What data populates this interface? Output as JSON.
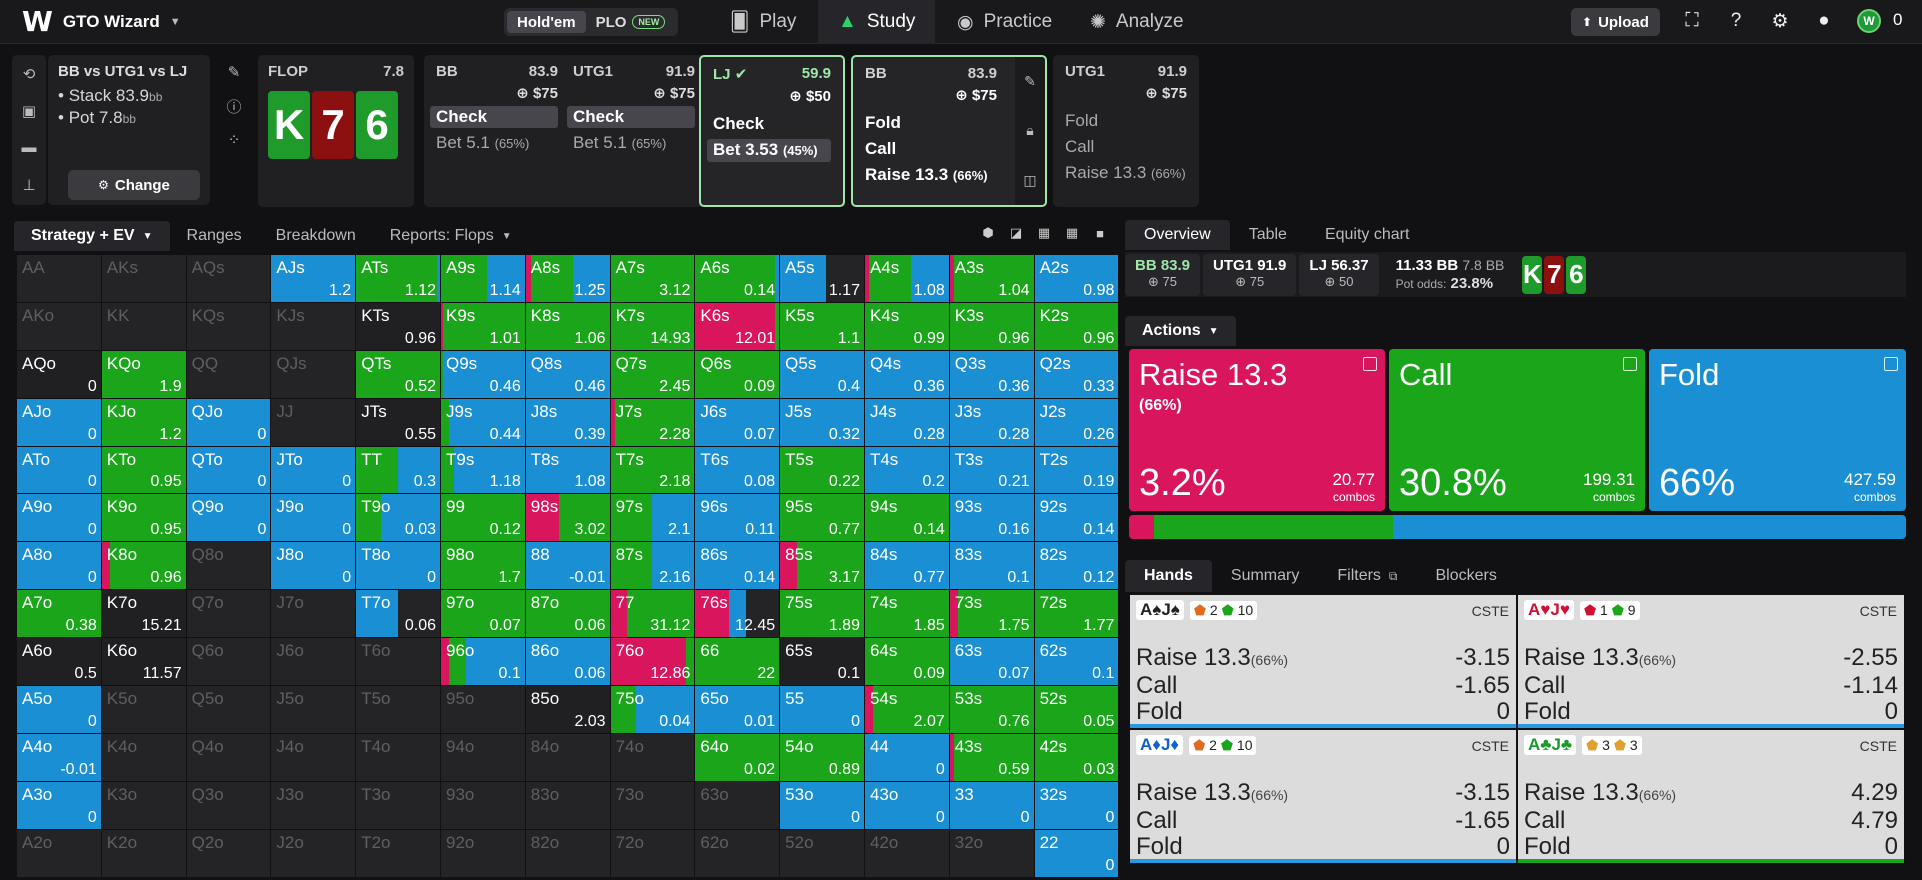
{
  "app": {
    "title": "GTO Wizard",
    "mode_holdem": "Hold'em",
    "mode_plo": "PLO",
    "new_badge": "NEW",
    "upload": "Upload",
    "coins": "0"
  },
  "nav": {
    "play": "Play",
    "study": "Study",
    "practice": "Practice",
    "analyze": "Analyze"
  },
  "game": {
    "title": "BB vs UTG1 vs LJ",
    "stack_label": "Stack 83.9",
    "stack_unit": "bb",
    "pot_label": "Pot 7.8",
    "pot_unit": "bb",
    "change": "Change"
  },
  "flop": {
    "label": "FLOP",
    "pot": "7.8",
    "cards": [
      "K",
      "7",
      "6"
    ]
  },
  "nodes": [
    {
      "pos": "BB",
      "stack": "83.9",
      "bet": "$75",
      "actions": [
        {
          "label": "Check",
          "pct": ""
        },
        {
          "label": "Bet 5.1",
          "pct": "(65%)"
        }
      ]
    },
    {
      "pos": "UTG1",
      "stack": "91.9",
      "bet": "$75",
      "actions": [
        {
          "label": "Check",
          "pct": ""
        },
        {
          "label": "Bet 5.1",
          "pct": "(65%)"
        }
      ]
    },
    {
      "pos": "LJ",
      "stack": "59.9",
      "bet": "$50",
      "actions": [
        {
          "label": "Check",
          "pct": ""
        },
        {
          "label": "Bet 3.53",
          "pct": "(45%)"
        }
      ]
    },
    {
      "pos": "BB",
      "stack": "83.9",
      "bet": "$75",
      "actions": [
        {
          "label": "Fold",
          "pct": ""
        },
        {
          "label": "Call",
          "pct": ""
        },
        {
          "label": "Raise 13.3",
          "pct": "(66%)"
        }
      ]
    },
    {
      "pos": "UTG1",
      "stack": "91.9",
      "bet": "$75",
      "actions": [
        {
          "label": "Fold",
          "pct": ""
        },
        {
          "label": "Call",
          "pct": ""
        },
        {
          "label": "Raise 13.3",
          "pct": "(66%)"
        }
      ]
    }
  ],
  "grid_tabs": {
    "strategy": "Strategy + EV",
    "ranges": "Ranges",
    "breakdown": "Breakdown",
    "reports": "Reports: Flops"
  },
  "colors": {
    "raise": "#d8155d",
    "call": "#1aa51a",
    "fold": "#1b8fd3",
    "empty": "#242427"
  },
  "grid": [
    [
      [
        "AA",
        "",
        0,
        0,
        0
      ],
      [
        "AKs",
        "",
        0,
        0,
        0
      ],
      [
        "AQs",
        "",
        0,
        0,
        0
      ],
      [
        "AJs",
        "1.2",
        0,
        0,
        1
      ],
      [
        "ATs",
        "1.12",
        0,
        0.97,
        0.03
      ],
      [
        "A9s",
        "1.14",
        0,
        0.55,
        0.45
      ],
      [
        "A8s",
        "1.25",
        0.06,
        0.5,
        0.44
      ],
      [
        "A7s",
        "3.12",
        0,
        1,
        0
      ],
      [
        "A6s",
        "0.14",
        0,
        0.95,
        0.05
      ],
      [
        "A5s",
        "1.17",
        0,
        0,
        0.55
      ],
      [
        "A4s",
        "1.08",
        0.05,
        0.5,
        0.45
      ],
      [
        "A3s",
        "1.04",
        0.05,
        0.95,
        0
      ],
      [
        "A2s",
        "0.98",
        0,
        0,
        1
      ]
    ],
    [
      [
        "AKo",
        "",
        0,
        0,
        0
      ],
      [
        "KK",
        "",
        0,
        0,
        0
      ],
      [
        "KQs",
        "",
        0,
        0,
        0
      ],
      [
        "KJs",
        "",
        0,
        0,
        0
      ],
      [
        "KTs",
        "0.96",
        0,
        0,
        0
      ],
      [
        "K9s",
        "1.01",
        0.03,
        0.97,
        0
      ],
      [
        "K8s",
        "1.06",
        0,
        1,
        0
      ],
      [
        "K7s",
        "14.93",
        0,
        1,
        0
      ],
      [
        "K6s",
        "12.01",
        0.95,
        0.05,
        0
      ],
      [
        "K5s",
        "1.1",
        0,
        1,
        0
      ],
      [
        "K4s",
        "0.99",
        0,
        1,
        0
      ],
      [
        "K3s",
        "0.96",
        0,
        1,
        0
      ],
      [
        "K2s",
        "0.96",
        0,
        1,
        0
      ]
    ],
    [
      [
        "AQo",
        "0",
        0,
        0,
        0
      ],
      [
        "KQo",
        "1.9",
        0,
        1,
        0
      ],
      [
        "QQ",
        "",
        0,
        0,
        0
      ],
      [
        "QJs",
        "",
        0,
        0,
        0
      ],
      [
        "QTs",
        "0.52",
        0,
        1,
        0
      ],
      [
        "Q9s",
        "0.46",
        0,
        0.03,
        0.97
      ],
      [
        "Q8s",
        "0.46",
        0,
        0,
        1
      ],
      [
        "Q7s",
        "2.45",
        0,
        1,
        0
      ],
      [
        "Q6s",
        "0.09",
        0,
        1,
        0
      ],
      [
        "Q5s",
        "0.4",
        0,
        0,
        1
      ],
      [
        "Q4s",
        "0.36",
        0,
        0,
        1
      ],
      [
        "Q3s",
        "0.36",
        0,
        0,
        1
      ],
      [
        "Q2s",
        "0.33",
        0,
        0,
        1
      ]
    ],
    [
      [
        "AJo",
        "0",
        0,
        0,
        1
      ],
      [
        "KJo",
        "1.2",
        0,
        1,
        0
      ],
      [
        "QJo",
        "0",
        0,
        0,
        1
      ],
      [
        "JJ",
        "",
        0,
        0,
        0
      ],
      [
        "JTs",
        "0.55",
        0,
        0,
        0
      ],
      [
        "J9s",
        "0.44",
        0,
        0.1,
        0.9
      ],
      [
        "J8s",
        "0.39",
        0,
        0,
        1
      ],
      [
        "J7s",
        "2.28",
        0.05,
        0.95,
        0
      ],
      [
        "J6s",
        "0.07",
        0,
        0,
        1
      ],
      [
        "J5s",
        "0.32",
        0,
        0,
        1
      ],
      [
        "J4s",
        "0.28",
        0,
        0,
        1
      ],
      [
        "J3s",
        "0.28",
        0,
        0,
        1
      ],
      [
        "J2s",
        "0.26",
        0,
        0,
        1
      ]
    ],
    [
      [
        "ATo",
        "0",
        0,
        0,
        1
      ],
      [
        "KTo",
        "0.95",
        0,
        1,
        0
      ],
      [
        "QTo",
        "0",
        0,
        0,
        1
      ],
      [
        "JTo",
        "0",
        0,
        0,
        1
      ],
      [
        "TT",
        "0.3",
        0,
        0.5,
        0.5
      ],
      [
        "T9s",
        "1.18",
        0,
        0.15,
        0.85
      ],
      [
        "T8s",
        "1.08",
        0,
        0,
        1
      ],
      [
        "T7s",
        "2.18",
        0,
        1,
        0
      ],
      [
        "T6s",
        "0.08",
        0,
        0,
        1
      ],
      [
        "T5s",
        "0.22",
        0,
        1,
        0
      ],
      [
        "T4s",
        "0.2",
        0,
        0,
        1
      ],
      [
        "T3s",
        "0.21",
        0,
        0,
        1
      ],
      [
        "T2s",
        "0.19",
        0,
        0,
        1
      ]
    ],
    [
      [
        "A9o",
        "0",
        0,
        0,
        1
      ],
      [
        "K9o",
        "0.95",
        0,
        1,
        0
      ],
      [
        "Q9o",
        "0",
        0,
        0,
        1
      ],
      [
        "J9o",
        "0",
        0,
        0,
        1
      ],
      [
        "T9o",
        "0.03",
        0,
        0.3,
        0.7
      ],
      [
        "99",
        "0.12",
        0,
        1,
        0
      ],
      [
        "98s",
        "3.02",
        0.4,
        0.6,
        0
      ],
      [
        "97s",
        "2.1",
        0,
        0.5,
        0.5
      ],
      [
        "96s",
        "0.11",
        0,
        0,
        1
      ],
      [
        "95s",
        "0.77",
        0,
        1,
        0
      ],
      [
        "94s",
        "0.14",
        0,
        1,
        0
      ],
      [
        "93s",
        "0.16",
        0,
        0,
        1
      ],
      [
        "92s",
        "0.14",
        0,
        0,
        1
      ]
    ],
    [
      [
        "A8o",
        "0",
        0,
        0,
        1
      ],
      [
        "K8o",
        "0.96",
        0.1,
        0.9,
        0
      ],
      [
        "Q8o",
        "",
        0,
        0,
        0
      ],
      [
        "J8o",
        "0",
        0,
        0,
        1
      ],
      [
        "T8o",
        "0",
        0,
        0,
        1
      ],
      [
        "98o",
        "1.7",
        0,
        1,
        0
      ],
      [
        "88",
        "-0.01",
        0,
        0,
        1
      ],
      [
        "87s",
        "2.16",
        0,
        0.5,
        0.5
      ],
      [
        "86s",
        "0.14",
        0,
        0,
        1
      ],
      [
        "85s",
        "3.17",
        0.2,
        0.8,
        0
      ],
      [
        "84s",
        "0.77",
        0,
        0,
        1
      ],
      [
        "83s",
        "0.1",
        0,
        0,
        1
      ],
      [
        "82s",
        "0.12",
        0,
        0,
        1
      ]
    ],
    [
      [
        "A7o",
        "0.38",
        0,
        1,
        0
      ],
      [
        "K7o",
        "15.21",
        0,
        0,
        0
      ],
      [
        "Q7o",
        "",
        0,
        0,
        0
      ],
      [
        "J7o",
        "",
        0,
        0,
        0
      ],
      [
        "T7o",
        "0.06",
        0,
        0,
        0.5
      ],
      [
        "97o",
        "0.07",
        0,
        1,
        0
      ],
      [
        "87o",
        "0.06",
        0,
        1,
        0
      ],
      [
        "77",
        "31.12",
        0.2,
        0.8,
        0
      ],
      [
        "76s",
        "12.45",
        0.4,
        0,
        0.2
      ],
      [
        "75s",
        "1.89",
        0,
        1,
        0
      ],
      [
        "74s",
        "1.85",
        0,
        1,
        0
      ],
      [
        "73s",
        "1.75",
        0.1,
        0.9,
        0
      ],
      [
        "72s",
        "1.77",
        0,
        1,
        0
      ]
    ],
    [
      [
        "A6o",
        "0.5",
        0,
        0,
        0
      ],
      [
        "K6o",
        "11.57",
        0,
        0,
        0
      ],
      [
        "Q6o",
        "",
        0,
        0,
        0
      ],
      [
        "J6o",
        "",
        0,
        0,
        0
      ],
      [
        "T6o",
        "",
        0,
        0,
        0
      ],
      [
        "96o",
        "0.1",
        0.1,
        0.2,
        0.7
      ],
      [
        "86o",
        "0.06",
        0,
        0,
        1
      ],
      [
        "76o",
        "12.86",
        0.9,
        0.1,
        0
      ],
      [
        "66",
        "22",
        0,
        1,
        0
      ],
      [
        "65s",
        "0.1",
        0,
        0,
        0
      ],
      [
        "64s",
        "0.09",
        0,
        1,
        0
      ],
      [
        "63s",
        "0.07",
        0,
        0,
        1
      ],
      [
        "62s",
        "0.1",
        0,
        0,
        1
      ]
    ],
    [
      [
        "A5o",
        "0",
        0,
        0,
        1
      ],
      [
        "K5o",
        "",
        0,
        0,
        0
      ],
      [
        "Q5o",
        "",
        0,
        0,
        0
      ],
      [
        "J5o",
        "",
        0,
        0,
        0
      ],
      [
        "T5o",
        "",
        0,
        0,
        0
      ],
      [
        "95o",
        "",
        0,
        0,
        0
      ],
      [
        "85o",
        "2.03",
        0,
        0,
        0
      ],
      [
        "75o",
        "0.04",
        0,
        0.3,
        0.7
      ],
      [
        "65o",
        "0.01",
        0,
        0,
        1
      ],
      [
        "55",
        "0",
        0,
        0,
        1
      ],
      [
        "54s",
        "2.07",
        0.1,
        0.9,
        0
      ],
      [
        "53s",
        "0.76",
        0,
        1,
        0
      ],
      [
        "52s",
        "0.05",
        0,
        1,
        0
      ]
    ],
    [
      [
        "A4o",
        "-0.01",
        0,
        0,
        1
      ],
      [
        "K4o",
        "",
        0,
        0,
        0
      ],
      [
        "Q4o",
        "",
        0,
        0,
        0
      ],
      [
        "J4o",
        "",
        0,
        0,
        0
      ],
      [
        "T4o",
        "",
        0,
        0,
        0
      ],
      [
        "94o",
        "",
        0,
        0,
        0
      ],
      [
        "84o",
        "",
        0,
        0,
        0
      ],
      [
        "74o",
        "",
        0,
        0,
        0
      ],
      [
        "64o",
        "0.02",
        0,
        1,
        0
      ],
      [
        "54o",
        "0.89",
        0,
        1,
        0
      ],
      [
        "44",
        "0",
        0,
        0,
        1
      ],
      [
        "43s",
        "0.59",
        0.05,
        0.95,
        0
      ],
      [
        "42s",
        "0.03",
        0,
        1,
        0
      ]
    ],
    [
      [
        "A3o",
        "0",
        0,
        0,
        1
      ],
      [
        "K3o",
        "",
        0,
        0,
        0
      ],
      [
        "Q3o",
        "",
        0,
        0,
        0
      ],
      [
        "J3o",
        "",
        0,
        0,
        0
      ],
      [
        "T3o",
        "",
        0,
        0,
        0
      ],
      [
        "93o",
        "",
        0,
        0,
        0
      ],
      [
        "83o",
        "",
        0,
        0,
        0
      ],
      [
        "73o",
        "",
        0,
        0,
        0
      ],
      [
        "63o",
        "",
        0,
        0,
        0
      ],
      [
        "53o",
        "0",
        0,
        0,
        1
      ],
      [
        "43o",
        "0",
        0,
        0,
        1
      ],
      [
        "33",
        "0",
        0,
        0,
        1
      ],
      [
        "32s",
        "0",
        0,
        0,
        1
      ]
    ],
    [
      [
        "A2o",
        "",
        0,
        0,
        0
      ],
      [
        "K2o",
        "",
        0,
        0,
        0
      ],
      [
        "Q2o",
        "",
        0,
        0,
        0
      ],
      [
        "J2o",
        "",
        0,
        0,
        0
      ],
      [
        "T2o",
        "",
        0,
        0,
        0
      ],
      [
        "92o",
        "",
        0,
        0,
        0
      ],
      [
        "82o",
        "",
        0,
        0,
        0
      ],
      [
        "72o",
        "",
        0,
        0,
        0
      ],
      [
        "62o",
        "",
        0,
        0,
        0
      ],
      [
        "52o",
        "",
        0,
        0,
        0
      ],
      [
        "42o",
        "",
        0,
        0,
        0
      ],
      [
        "32o",
        "",
        0,
        0,
        0
      ],
      [
        "22",
        "0",
        0,
        0,
        1
      ]
    ]
  ],
  "overview": {
    "tabs": {
      "overview": "Overview",
      "table": "Table",
      "equity": "Equity chart"
    },
    "players": [
      {
        "name": "BB 83.9",
        "sub": "75"
      },
      {
        "name": "UTG1 91.9",
        "sub": "75"
      },
      {
        "name": "LJ 56.37",
        "sub": "50"
      }
    ],
    "pot_bb": "11.33 BB",
    "pot_small": "7.8 BB",
    "pot_odds_label": "Pot odds:",
    "pot_odds": "23.8%",
    "actions_label": "Actions",
    "actions": [
      {
        "name": "Raise 13.3",
        "sub": "(66%)",
        "pct": "3.2%",
        "combos": "20.77",
        "combos_label": "combos",
        "share": 0.032
      },
      {
        "name": "Call",
        "sub": "",
        "pct": "30.8%",
        "combos": "199.31",
        "combos_label": "combos",
        "share": 0.308
      },
      {
        "name": "Fold",
        "sub": "",
        "pct": "66%",
        "combos": "427.59",
        "combos_label": "combos",
        "share": 0.66
      }
    ]
  },
  "hands": {
    "tabs": {
      "hands": "Hands",
      "summary": "Summary",
      "filters": "Filters",
      "blockers": "Blockers"
    },
    "cards": [
      {
        "combo_a": "A♠",
        "combo_b": "J♠",
        "tag1": "2",
        "tag2": "10",
        "cste": "CSTE",
        "rows": [
          [
            "Raise 13.3",
            "(66%)",
            "-3.15"
          ],
          [
            "Call",
            "",
            "-1.65"
          ],
          [
            "Fold",
            "",
            "0"
          ]
        ]
      },
      {
        "combo_a": "A♥",
        "combo_b": "J♥",
        "tag1": "1",
        "tag2": "9",
        "cste": "CSTE",
        "rows": [
          [
            "Raise 13.3",
            "(66%)",
            "-2.55"
          ],
          [
            "Call",
            "",
            "-1.14"
          ],
          [
            "Fold",
            "",
            "0"
          ]
        ]
      },
      {
        "combo_a": "A♦",
        "combo_b": "J♦",
        "tag1": "2",
        "tag2": "10",
        "cste": "CSTE",
        "rows": [
          [
            "Raise 13.3",
            "(66%)",
            "-3.15"
          ],
          [
            "Call",
            "",
            "-1.65"
          ],
          [
            "Fold",
            "",
            "0"
          ]
        ]
      },
      {
        "combo_a": "A♣",
        "combo_b": "J♣",
        "tag1": "3",
        "tag2": "3",
        "cste": "CSTE",
        "rows": [
          [
            "Raise 13.3",
            "(66%)",
            "4.29"
          ],
          [
            "Call",
            "",
            "4.79"
          ],
          [
            "Fold",
            "",
            "0"
          ]
        ]
      }
    ]
  }
}
